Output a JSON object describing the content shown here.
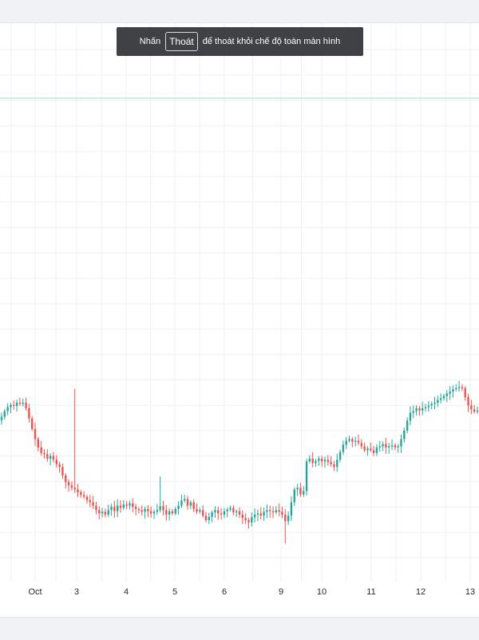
{
  "banner": {
    "prefix": "Nhấn",
    "key_label": "Thoát",
    "suffix": "để thoát khỏi chế độ toàn màn hình"
  },
  "chart_data": {
    "type": "candlestick",
    "title": "",
    "xlabel": "",
    "ylabel": "",
    "x_ticks": [
      "Oct",
      "3",
      "4",
      "5",
      "6",
      "9",
      "10",
      "11",
      "12",
      "13"
    ],
    "ylim": [
      0,
      100
    ],
    "grid": true,
    "reference_line": 92.5,
    "colors": {
      "up": "#26a69a",
      "down": "#ef5350",
      "grid": "#eef0f2",
      "reference": "#a8d8cc"
    },
    "close": [
      29.5,
      30.5,
      31.2,
      31.6,
      31.4,
      32.0,
      31.8,
      32.0,
      31.0,
      29.2,
      27.3,
      25.5,
      24.0,
      23.0,
      22.8,
      22.0,
      22.5,
      21.8,
      21.0,
      20.5,
      19.0,
      17.8,
      17.2,
      16.8,
      16.5,
      16.0,
      15.5,
      15.2,
      14.6,
      14.2,
      13.6,
      12.8,
      12.2,
      12.5,
      12.0,
      12.8,
      13.4,
      12.6,
      13.6,
      13.2,
      13.8,
      13.6,
      14.0,
      13.4,
      13.0,
      12.8,
      12.5,
      13.0,
      12.6,
      12.2,
      12.5,
      12.8,
      13.5,
      12.8,
      12.0,
      12.6,
      12.2,
      13.0,
      13.6,
      14.5,
      14.8,
      13.6,
      14.2,
      13.0,
      12.5,
      12.8,
      11.8,
      11.0,
      11.6,
      12.4,
      12.8,
      12.2,
      12.0,
      12.6,
      12.9,
      13.2,
      12.4,
      12.6,
      12.0,
      11.4,
      11.0,
      10.6,
      11.5,
      12.0,
      12.2,
      11.8,
      12.5,
      12.8,
      12.6,
      12.4,
      12.8,
      12.5,
      12.0,
      10.8,
      11.8,
      14.2,
      16.5,
      16.8,
      15.6,
      16.2,
      21.5,
      22.0,
      21.2,
      21.6,
      22.0,
      21.5,
      21.8,
      21.4,
      21.0,
      20.5,
      21.8,
      23.2,
      24.5,
      25.2,
      25.5,
      25.0,
      25.2,
      24.8,
      24.2,
      23.5,
      23.8,
      23.5,
      23.0,
      24.0,
      24.2,
      24.6,
      24.0,
      24.2,
      24.4,
      24.0,
      24.2,
      25.5,
      27.0,
      28.8,
      30.2,
      30.5,
      31.0,
      30.6,
      31.0,
      31.2,
      31.5,
      31.8,
      32.0,
      32.5,
      32.8,
      33.2,
      33.6,
      34.0,
      34.4,
      34.6,
      34.8,
      34.6,
      33.0,
      31.5,
      30.8,
      30.4,
      30.6
    ],
    "extra_highs": {
      "24": 34.5,
      "52": 18.8
    },
    "extra_lows": {
      "93": 6.8
    }
  }
}
